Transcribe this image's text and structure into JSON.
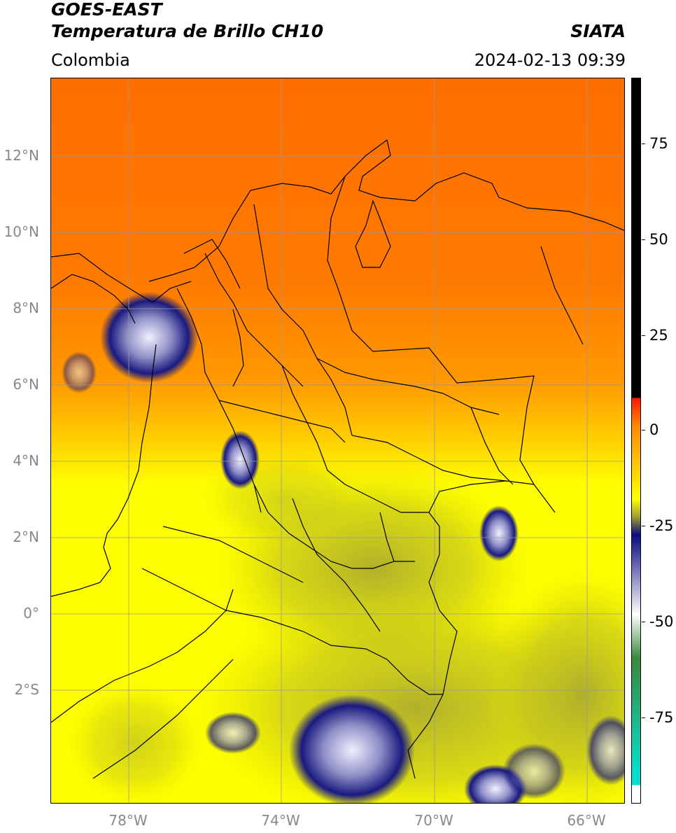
{
  "header": {
    "title_line1": "GOES-EAST",
    "title_line2": "Temperatura de Brillo CH10",
    "title_right": "SIATA",
    "region": "Colombia",
    "timestamp": "2024-02-13 09:39"
  },
  "axes": {
    "lat_labels": [
      "12°N",
      "10°N",
      "8°N",
      "6°N",
      "4°N",
      "2°N",
      "0°",
      "2°S"
    ],
    "lon_labels": [
      "78°W",
      "74°W",
      "70°W",
      "66°W"
    ]
  },
  "colorbar": {
    "tick_labels": [
      "75",
      "50",
      "25",
      "0",
      "-25",
      "-50",
      "-75"
    ],
    "colors": {
      "black": "#000000",
      "red": "#ff1a00",
      "orange": "#ff8a00",
      "yellow": "#ffff00",
      "olive": "#a0a030",
      "navy": "#0a0a80",
      "white": "#ffffff",
      "green": "#3a8a3a",
      "cyan": "#00e0d0"
    }
  }
}
